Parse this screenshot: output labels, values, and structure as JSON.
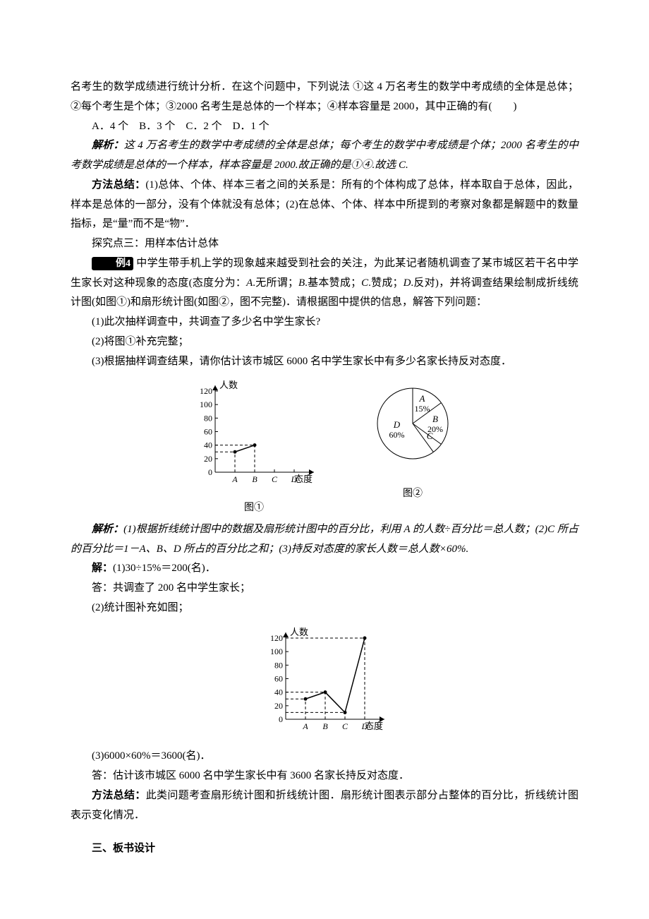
{
  "p1": "名考生的数学成绩进行统计分析．在这个问题中，下列说法 ①这 4 万名考生的数学中考成绩的全体是总体；②每个考生是个体；③2000 名考生是总体的一个样本；④样本容量是 2000，其中正确的有(　　)",
  "options": "A．4 个　B．3 个　C．2 个　D．1 个",
  "analysis1_label": "解析：",
  "analysis1": "这 4 万名考生的数学中考成绩的全体是总体；每个考生的数学中考成绩是个体；2000 名考生的中考数学成绩是总体的一个样本，样本容量是 2000.故正确的是①④.故选 C.",
  "method1_label": "方法总结：",
  "method1": "(1)总体、个体、样本三者之间的关系是：所有的个体构成了总体，样本取自于总体，因此，样本是总体的一部分，没有个体就没有总体；(2)在总体、个体、样本中所提到的考察对象都是解题中的数量指标，是“量”而不是“物”．",
  "explore": "探究点三：用样本估计总体",
  "ex4_tag": "例4",
  "ex4_stem": "中学生带手机上学的现象越来越受到社会的关注，为此某记者随机调查了某市城区若干名中学生家长对这种现象的态度(态度分为：",
  "ex4_a": "A",
  "ex4_a_text": ".无所谓；",
  "ex4_b": "B",
  "ex4_b_text": ".基本赞成；",
  "ex4_c": "C",
  "ex4_c_text": ".赞成；",
  "ex4_d": "D",
  "ex4_d_text": ".反对)，并将调查结果绘制成折线统计图(如图①)和扇形统计图(如图②，图不完整)．请根据图中提供的信息，解答下列问题：",
  "q1": "(1)此次抽样调查中，共调查了多少名中学生家长?",
  "q2": "(2)将图①补充完整；",
  "q3": "(3)根据抽样调查结果，请你估计该市城区 6000 名中学生家长中有多少名家长持反对态度．",
  "chart1": {
    "y_title": "人数",
    "y_ticks": [
      0,
      20,
      40,
      60,
      80,
      100,
      120
    ],
    "x_labels": [
      "A",
      "B",
      "C",
      "D"
    ],
    "x_axis_label": "态度",
    "points": [
      {
        "x": "A",
        "y": 30
      },
      {
        "x": "B",
        "y": 40
      }
    ],
    "stroke": "#000000",
    "dash": "4,3",
    "caption": "图①"
  },
  "pie": {
    "slices": [
      {
        "label": "A",
        "sub": "15%",
        "start": 0,
        "end": 54,
        "label_r": 32,
        "label_angle": 25
      },
      {
        "label": "B",
        "sub": "20%",
        "start": 54,
        "end": 126,
        "label_r": 32,
        "label_angle": 90
      },
      {
        "label": "C",
        "sub": "",
        "start": 126,
        "end": 144,
        "label_r": 34,
        "label_angle": 135
      },
      {
        "label": "D",
        "sub": "60%",
        "start": 144,
        "end": 360,
        "label_r": 24,
        "label_angle": 250
      }
    ],
    "radius": 50,
    "stroke": "#000000",
    "caption": "图②"
  },
  "analysis2_label": "解析：",
  "analysis2": "(1)根据折线统计图中的数据及扇形统计图中的百分比，利用 A 的人数÷百分比＝总人数；(2)C 所占的百分比＝1－A、B、D 所占的百分比之和；(3)持反对态度的家长人数＝总人数×60%.",
  "sol_label": "解：",
  "sol1": "(1)30÷15%＝200(名)．",
  "sol1_ans": "答：共调查了 200 名中学生家长；",
  "sol2": "(2)统计图补充如图；",
  "chart2": {
    "y_title": "人数",
    "y_ticks": [
      0,
      20,
      40,
      60,
      80,
      100,
      120
    ],
    "x_labels": [
      "A",
      "B",
      "C",
      "D"
    ],
    "x_axis_label": "态度",
    "points": [
      {
        "x": "A",
        "y": 30
      },
      {
        "x": "B",
        "y": 40
      },
      {
        "x": "C",
        "y": 10
      },
      {
        "x": "D",
        "y": 120
      }
    ],
    "stroke": "#000000",
    "dash": "4,3"
  },
  "sol3": "(3)6000×60%＝3600(名)．",
  "sol3_ans": "答：估计该市城区 6000 名中学生家长中有 3600 名家长持反对态度．",
  "method2_label": "方法总结：",
  "method2": "此类问题考查扇形统计图和折线统计图．扇形统计图表示部分占整体的百分比，折线统计图表示变化情况．",
  "board": "三、板书设计"
}
